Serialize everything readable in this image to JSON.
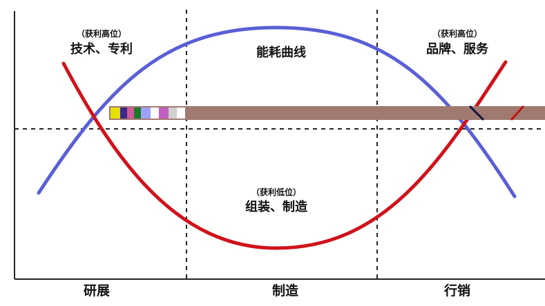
{
  "colors": {
    "blue_curve": "#5a5fd6",
    "red_curve": "#d0121b",
    "axis": "#222222",
    "artifact_band": "#a07a70"
  },
  "curve_label": "能耗曲线",
  "regions": {
    "left": {
      "note": "（获利高位）",
      "label": "技术、专利"
    },
    "middle": {
      "note": "（获利低位）",
      "label": "组装、制造"
    },
    "right": {
      "note": "（获利高位）",
      "label": "品牌、服务"
    }
  },
  "x_axis": [
    "研展",
    "制造",
    "行销"
  ]
}
